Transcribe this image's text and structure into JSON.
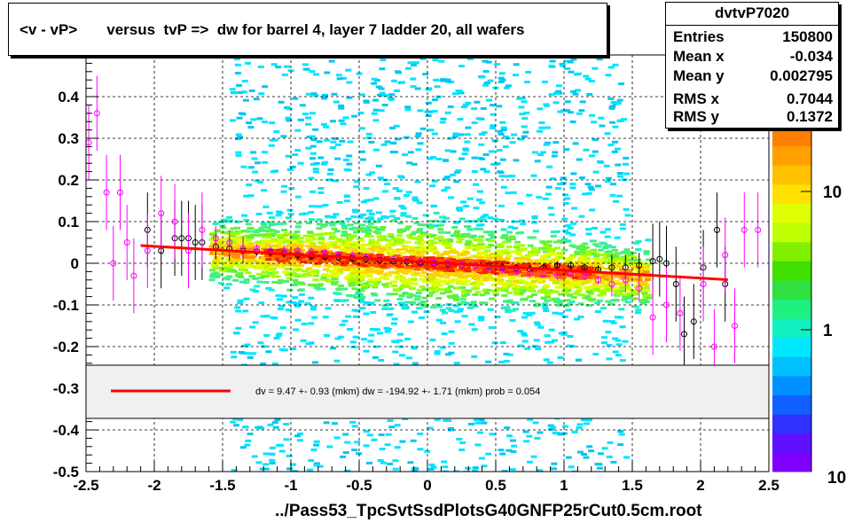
{
  "title": "<v - vP>       versus  tvP =>  dw for barrel 4, layer 7 ladder 20, all wafers",
  "stats": {
    "name": "dvtvP7020",
    "rows": [
      {
        "label": "Entries",
        "value": "150800"
      },
      {
        "label": "Mean x",
        "value": "-0.034"
      },
      {
        "label": "Mean y",
        "value": "0.002795"
      },
      {
        "label": "RMS x",
        "value": "0.7044"
      },
      {
        "label": "RMS y",
        "value": "0.1372"
      }
    ]
  },
  "x_axis_title": "../Pass53_TpcSvtSsdPlotsG40GNFP25rCut0.5cm.root",
  "fit_legend": {
    "text": "dv =    9.47 +-  0.93 (mkm) dw = -194.92 +-  1.71 (mkm) prob = 0.054",
    "line_color": "#ff0000"
  },
  "colors": {
    "fit_line": "#ff0000",
    "profile_black": "#000000",
    "profile_magenta": "#ff00ff",
    "legend_fill": "#f0f0f0"
  },
  "chart_data": {
    "type": "heatmap",
    "xlim": [
      -2.5,
      2.5
    ],
    "ylim": [
      -0.5,
      0.5
    ],
    "x_ticks": [
      "-2.5",
      "-2",
      "-1.5",
      "-1",
      "-0.5",
      "0",
      "0.5",
      "1",
      "1.5",
      "2",
      "2.5"
    ],
    "y_ticks": [
      "-0.5",
      "-0.4",
      "-0.3",
      "-0.2",
      "-0.1",
      "0",
      "0.1",
      "0.2",
      "0.3",
      "0.4"
    ],
    "grid": true,
    "color_scale": "log",
    "colorbar_ticks": [
      "1",
      "10"
    ],
    "colorbar_top_partial": "10",
    "fit_line": {
      "x": [
        -2.1,
        2.2
      ],
      "y": [
        0.0425,
        -0.0395
      ]
    },
    "profile_black": {
      "x": [
        -2.05,
        -1.95,
        -1.85,
        -1.8,
        -1.75,
        -1.7,
        -1.65,
        -1.55,
        -1.45,
        -1.35,
        -1.25,
        -1.15,
        -1.05,
        -0.95,
        -0.85,
        -0.75,
        -0.65,
        -0.55,
        -0.45,
        -0.35,
        -0.25,
        -0.15,
        -0.05,
        0.05,
        0.15,
        0.25,
        0.35,
        0.45,
        0.55,
        0.65,
        0.75,
        0.85,
        0.95,
        1.05,
        1.15,
        1.25,
        1.35,
        1.45,
        1.55,
        1.65,
        1.7,
        1.75,
        1.82,
        1.88,
        1.95,
        2.02,
        2.12,
        2.18
      ],
      "y": [
        0.08,
        0.03,
        0.06,
        0.06,
        0.06,
        0.05,
        0.05,
        0.04,
        0.035,
        0.03,
        0.028,
        0.026,
        0.024,
        0.02,
        0.018,
        0.016,
        0.014,
        0.012,
        0.01,
        0.008,
        0.006,
        0.004,
        0.002,
        0.0,
        -0.002,
        -0.004,
        -0.006,
        -0.008,
        -0.01,
        -0.012,
        -0.014,
        -0.01,
        -0.005,
        -0.005,
        -0.01,
        -0.015,
        -0.01,
        -0.01,
        -0.005,
        0.005,
        0.01,
        0.0,
        -0.05,
        -0.17,
        -0.14,
        -0.01,
        0.08,
        -0.05
      ]
    },
    "profile_magenta": {
      "x": [
        -2.48,
        -2.42,
        -2.35,
        -2.3,
        -2.25,
        -2.2,
        -2.15,
        -2.05,
        -1.95,
        -1.85,
        -1.75,
        -1.65,
        -1.55,
        -1.45,
        -1.35,
        -1.25,
        -1.15,
        -1.05,
        -0.95,
        -0.85,
        -0.75,
        -0.65,
        -0.55,
        -0.45,
        -0.35,
        -0.25,
        -0.15,
        -0.05,
        0.05,
        0.15,
        0.25,
        0.35,
        0.45,
        0.55,
        0.65,
        0.75,
        0.85,
        0.95,
        1.05,
        1.15,
        1.25,
        1.35,
        1.45,
        1.55,
        1.65,
        1.75,
        1.85,
        1.92,
        2.02,
        2.1,
        2.18,
        2.25,
        2.32,
        2.42
      ],
      "y": [
        0.29,
        0.36,
        0.17,
        0.0,
        0.17,
        0.05,
        -0.03,
        0.03,
        0.12,
        0.1,
        0.03,
        0.08,
        0.06,
        0.05,
        0.035,
        0.035,
        0.03,
        0.03,
        0.03,
        0.028,
        0.025,
        0.02,
        0.018,
        0.015,
        0.012,
        0.01,
        0.008,
        0.005,
        0.002,
        0.0,
        -0.003,
        -0.006,
        -0.01,
        -0.015,
        -0.02,
        -0.025,
        -0.025,
        -0.03,
        -0.025,
        -0.03,
        -0.04,
        -0.05,
        -0.04,
        -0.06,
        -0.13,
        -0.1,
        -0.12,
        0.47,
        -0.05,
        -0.2,
        0.02,
        -0.15,
        0.08,
        0.08
      ]
    }
  }
}
